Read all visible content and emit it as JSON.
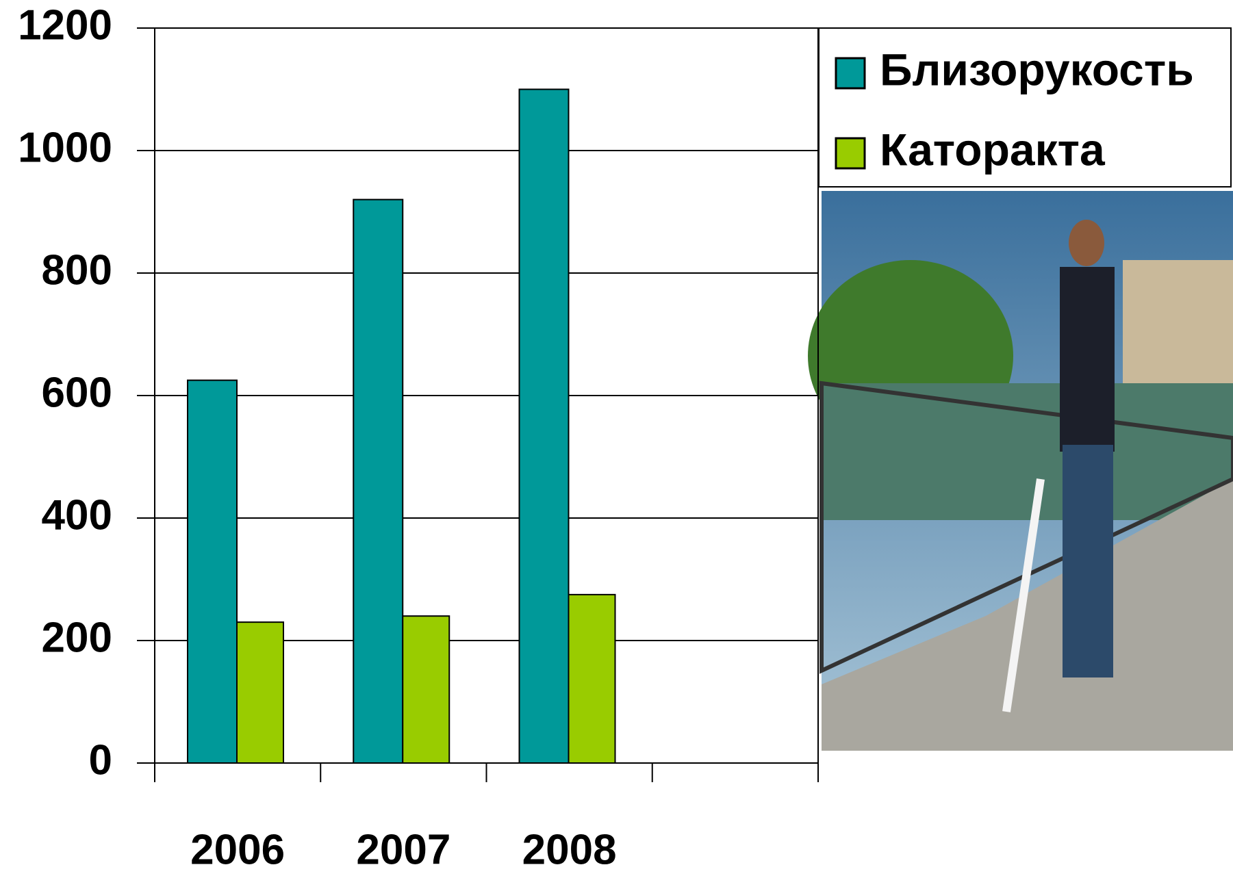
{
  "chart_data": {
    "type": "bar",
    "categories": [
      "2006",
      "2007",
      "2008",
      null
    ],
    "series": [
      {
        "name": "Близорукость",
        "color": "#009999",
        "values": [
          625,
          920,
          1100,
          null
        ]
      },
      {
        "name": "Каторакта",
        "color": "#99cc00",
        "values": [
          230,
          240,
          275,
          null
        ]
      }
    ],
    "ylim": [
      0,
      1200
    ],
    "yticks": [
      0,
      200,
      400,
      600,
      800,
      1000,
      1200
    ],
    "grid": true,
    "legend": "top-right"
  }
}
